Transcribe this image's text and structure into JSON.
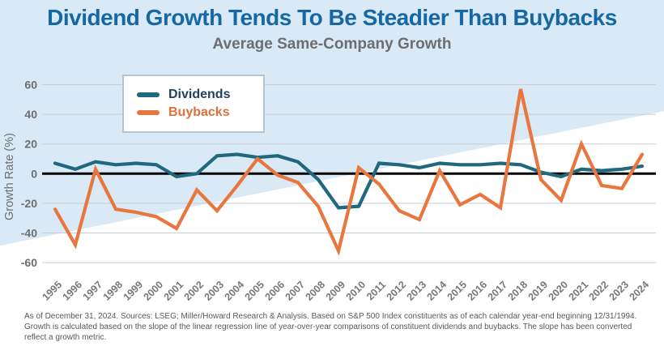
{
  "title": "Dividend Growth Tends To Be Steadier Than Buybacks",
  "subtitle": "Average Same-Company Growth",
  "legend": {
    "dividends_label": "Dividends",
    "buybacks_label": "Buybacks"
  },
  "colors": {
    "background_blue": "#d9eaf6",
    "title_blue": "#1568a4",
    "subtitle_gray": "#6d6e71",
    "dividends_line": "#1f687e",
    "buybacks_line": "#e8773f",
    "zero_line": "#000000",
    "gridline": "#c9ced3",
    "axis_text": "#6d6e71"
  },
  "chart_data": {
    "type": "line",
    "title": "Dividend Growth Tends To Be Steadier Than Buybacks",
    "subtitle": "Average Same-Company Growth",
    "xlabel": "",
    "ylabel": "Growth Rate (%)",
    "ylim": [
      -60,
      60
    ],
    "yticks": [
      60,
      40,
      20,
      0,
      -20,
      -40,
      -60
    ],
    "grid": "horizontal",
    "zero_line": true,
    "legend_position": "top-left-inset",
    "categories": [
      "1995",
      "1996",
      "1997",
      "1998",
      "1999",
      "2000",
      "2001",
      "2002",
      "2003",
      "2004",
      "2005",
      "2006",
      "2007",
      "2008",
      "2009",
      "2010",
      "2011",
      "2012",
      "2013",
      "2014",
      "2015",
      "2016",
      "2017",
      "2018",
      "2019",
      "2020",
      "2021",
      "2022",
      "2023",
      "2024"
    ],
    "series": [
      {
        "name": "Dividends",
        "color": "#1f687e",
        "values": [
          7,
          3,
          8,
          6,
          7,
          6,
          -2,
          0,
          12,
          13,
          11,
          12,
          8,
          -4,
          -23,
          -22,
          7,
          6,
          4,
          7,
          6,
          6,
          7,
          6,
          1,
          -2,
          3,
          2,
          3,
          5
        ]
      },
      {
        "name": "Buybacks",
        "color": "#e8773f",
        "values": [
          -24,
          -48,
          3,
          -24,
          -26,
          -29,
          -37,
          -11,
          -25,
          -8,
          10,
          -1,
          -6,
          -22,
          -52,
          4,
          -7,
          -25,
          -31,
          2,
          -21,
          -14,
          -23,
          57,
          -4,
          -18,
          20,
          -8,
          -10,
          13
        ]
      }
    ]
  },
  "footnote": {
    "line1": "As of December 31, 2024. Sources: LSEG; Miller/Howard Research & Analysis. Based on S&P 500 Index constituents as of each calendar year-end beginning 12/31/1994.",
    "line2": "Growth is calculated based on the slope of the linear regression line of year-over-year comparisons of constituent dividends and buybacks. The slope has been converted",
    "line3": "reflect a growth metric."
  }
}
